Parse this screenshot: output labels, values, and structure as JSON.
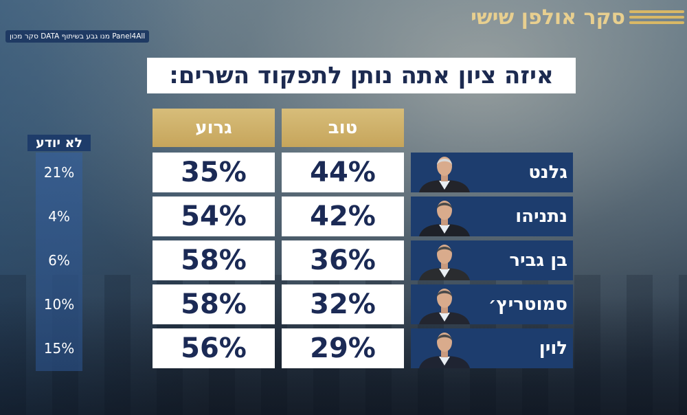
{
  "brand": {
    "title": "סקר אולפן שישי"
  },
  "credit": {
    "text": "סקר מכון DATA מנו גבע בשיתוף Panel4All"
  },
  "question": "איזה ציון אתה נותן לתפקוד השרים:",
  "columns": {
    "good": "טוב",
    "bad": "גרוע",
    "dont_know": "לא יודע"
  },
  "chart_data": {
    "type": "table",
    "title": "איזה ציון אתה נותן לתפקוד השרים:",
    "columns": [
      "טוב",
      "גרוע",
      "לא יודע"
    ],
    "rows": [
      {
        "name": "גלנט",
        "good": "44%",
        "bad": "35%",
        "dont_know": "21%",
        "good_value": 44,
        "bad_value": 35,
        "dont_know_value": 21
      },
      {
        "name": "נתניהו",
        "good": "42%",
        "bad": "54%",
        "dont_know": "4%",
        "good_value": 42,
        "bad_value": 54,
        "dont_know_value": 4
      },
      {
        "name": "בן גביר",
        "good": "36%",
        "bad": "58%",
        "dont_know": "6%",
        "good_value": 36,
        "bad_value": 58,
        "dont_know_value": 6
      },
      {
        "name": "סמוטריץ׳",
        "good": "32%",
        "bad": "58%",
        "dont_know": "10%",
        "good_value": 32,
        "bad_value": 58,
        "dont_know_value": 10
      },
      {
        "name": "לוין",
        "good": "29%",
        "bad": "56%",
        "dont_know": "15%",
        "good_value": 29,
        "bad_value": 56,
        "dont_know_value": 15
      }
    ]
  },
  "colors": {
    "gold": "#c9a85c",
    "navy": "#1d3d6e",
    "value_text": "#1b2a55",
    "white": "#ffffff"
  }
}
